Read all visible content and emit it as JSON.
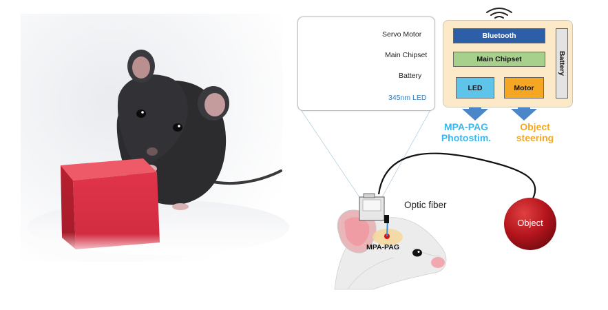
{
  "device": {
    "servo_motor": "Servo Motor",
    "main_chipset": "Main Chipset",
    "battery": "Battery",
    "led": "345nm LED"
  },
  "block_diagram": {
    "bluetooth": "Bluetooth",
    "main_chipset": "Main Chipset",
    "led": "LED",
    "motor": "Motor",
    "battery": "Battery",
    "output_led_line1": "MPA-PAG",
    "output_led_line2": "Photostim.",
    "output_motor_line1": "Object",
    "output_motor_line2": "steering"
  },
  "scene": {
    "optic_fiber": "Optic fiber",
    "mpa_pag": "MPA-PAG",
    "object": "Object"
  },
  "colors": {
    "bluetooth": "#2d5ea8",
    "main_chipset": "#a8d08d",
    "led_block": "#5fc4ea",
    "motor_block": "#f5a623",
    "battery_block": "#e3e3e3",
    "panel_bg": "#fbe9c8",
    "arrow_blue": "#4a86c8",
    "output_led_text": "#3ab6ea",
    "output_motor_text": "#f5a623",
    "object_ball": "#b3141c",
    "cube": "#e23a48",
    "mouse_photo": "#2a2a2c"
  },
  "icons": {
    "wireless": "wifi-signal-icon"
  }
}
